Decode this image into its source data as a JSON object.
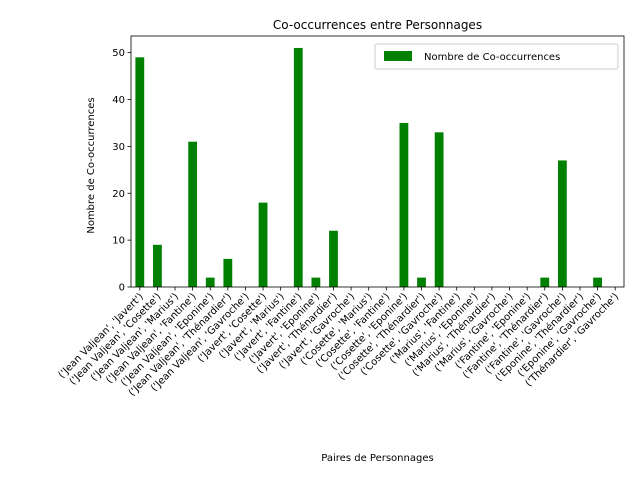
{
  "chart_data": {
    "type": "bar",
    "title": "Co-occurrences entre Personnages",
    "xlabel": "Paires de Personnages",
    "ylabel": "Nombre de Co-occurrences",
    "ylim": [
      0,
      53.55
    ],
    "yticks": [
      0,
      10,
      20,
      30,
      40,
      50
    ],
    "grid": false,
    "legend_position": "top-right",
    "bar_color": "#008000",
    "categories": [
      "('Jean Valjean', 'Javert')",
      "('Jean Valjean', 'Cosette')",
      "('Jean Valjean', 'Marius')",
      "('Jean Valjean', 'Fantine')",
      "('Jean Valjean', 'Eponine')",
      "('Jean Valjean', 'Thénardier')",
      "('Jean Valjean', 'Gavroche')",
      "('Javert', 'Cosette')",
      "('Javert', 'Marius')",
      "('Javert', 'Fantine')",
      "('Javert', 'Eponine')",
      "('Javert', 'Thénardier')",
      "('Javert', 'Gavroche')",
      "('Cosette', 'Marius')",
      "('Cosette', 'Fantine')",
      "('Cosette', 'Eponine')",
      "('Cosette', 'Thénardier')",
      "('Cosette', 'Gavroche')",
      "('Marius', 'Fantine')",
      "('Marius', 'Eponine')",
      "('Marius', 'Thénardier')",
      "('Marius', 'Gavroche')",
      "('Fantine', 'Eponine')",
      "('Fantine', 'Thénardier')",
      "('Fantine', 'Gavroche')",
      "('Eponine', 'Thénardier')",
      "('Eponine', 'Gavroche')",
      "('Thénardier', 'Gavroche')"
    ],
    "series": [
      {
        "name": "Nombre de Co-occurrences",
        "values": [
          49,
          9,
          0,
          31,
          2,
          6,
          0,
          18,
          0,
          51,
          2,
          12,
          0,
          0,
          0,
          35,
          2,
          33,
          0,
          0,
          0,
          0,
          0,
          2,
          27,
          0,
          2,
          0
        ]
      }
    ]
  }
}
